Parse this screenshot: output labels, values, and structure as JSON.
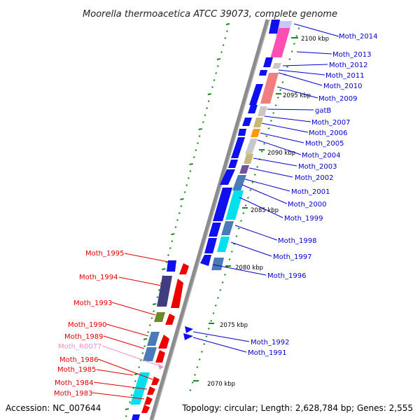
{
  "title": "Moorella thermoacetica ATCC 39073, complete genome",
  "accession": "Accession: NC_007644",
  "topology": "Topology: circular; Length: 2,628,784 bp; Genes: 2,555",
  "colors": {
    "plus_label": "#0000cc",
    "minus_label": "#e00000",
    "rna_label": "#f090c8",
    "backbone": "#8c8c8c",
    "tick": "#1a8a1a"
  },
  "kbp_ticks": [
    "2100 kbp",
    "2095 kbp",
    "2090 kbp",
    "2085 kbp",
    "2080 kbp",
    "2075 kbp",
    "2070 kbp"
  ],
  "plus_genes": [
    "Moth_2014",
    "Moth_2013",
    "Moth_2012",
    "Moth_2011",
    "Moth_2010",
    "Moth_2009",
    "gatB",
    "Moth_2007",
    "Moth_2006",
    "Moth_2005",
    "Moth_2004",
    "Moth_2003",
    "Moth_2002",
    "Moth_2001",
    "Moth_2000",
    "Moth_1999",
    "Moth_1998",
    "Moth_1997",
    "Moth_1996",
    "Moth_1992",
    "Moth_1991"
  ],
  "minus_genes": [
    "Moth_1995",
    "Moth_1994",
    "Moth_1993",
    "Moth_1990",
    "Moth_1989",
    "Moth_R0077",
    "Moth_1986",
    "Moth_1985",
    "Moth_1984",
    "Moth_1983"
  ]
}
